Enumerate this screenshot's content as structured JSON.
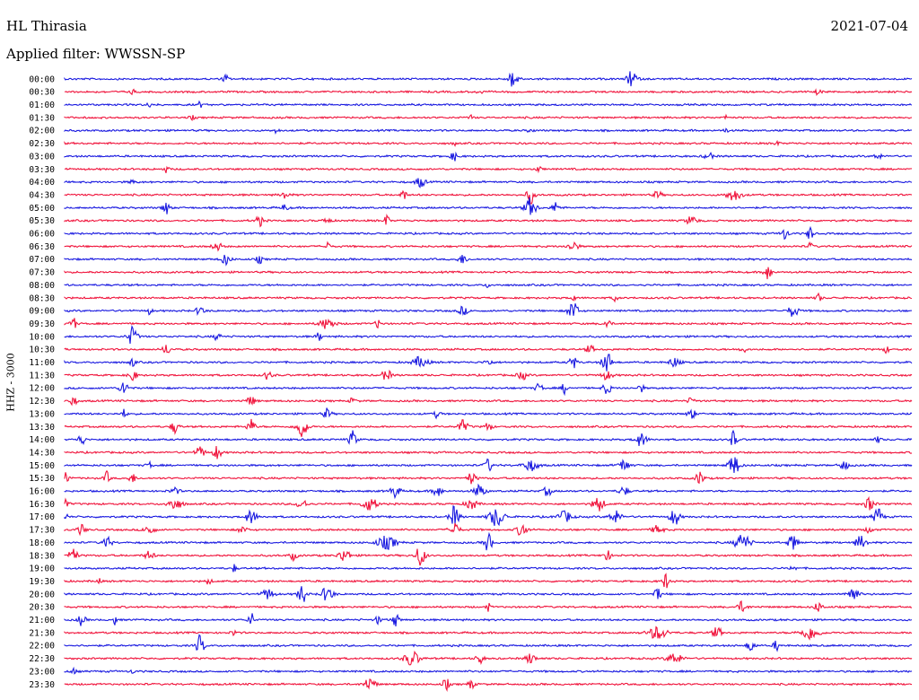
{
  "header": {
    "station": "HL Thirasia",
    "date": "2021-07-04",
    "filter_label": "Applied filter: WWSSN-SP"
  },
  "chart_data": {
    "type": "seismogram",
    "title": "HL Thirasia",
    "date": "2021-07-04",
    "filter": "WWSSN-SP",
    "ylabel": "HHZ - 3000",
    "row_interval_minutes": 30,
    "grid": false,
    "colors": [
      "#1a1ae0",
      "#f0143c"
    ],
    "traces": [
      {
        "time": "00:00",
        "color": "blue",
        "bursts": [
          [
            0.19,
            0.4,
            3
          ],
          [
            0.53,
            0.9,
            5
          ],
          [
            0.67,
            0.9,
            5
          ]
        ]
      },
      {
        "time": "00:30",
        "color": "red",
        "bursts": [
          [
            0.08,
            0.3,
            2
          ],
          [
            0.49,
            0.3,
            3
          ],
          [
            0.89,
            0.3,
            3
          ]
        ]
      },
      {
        "time": "01:00",
        "color": "blue",
        "bursts": [
          [
            0.1,
            0.3,
            2
          ],
          [
            0.16,
            0.3,
            2
          ]
        ]
      },
      {
        "time": "01:30",
        "color": "red",
        "bursts": [
          [
            0.15,
            0.2,
            3
          ],
          [
            0.48,
            0.25,
            2
          ],
          [
            0.78,
            0.2,
            2
          ]
        ]
      },
      {
        "time": "02:00",
        "color": "blue",
        "bursts": [
          [
            0.25,
            0.2,
            3
          ],
          [
            0.55,
            0.2,
            3
          ],
          [
            0.78,
            0.2,
            3
          ]
        ]
      },
      {
        "time": "02:30",
        "color": "red",
        "bursts": [
          [
            0.46,
            0.2,
            2
          ],
          [
            0.84,
            0.2,
            3
          ]
        ]
      },
      {
        "time": "03:00",
        "color": "blue",
        "bursts": [
          [
            0.46,
            0.4,
            4
          ],
          [
            0.76,
            0.3,
            5
          ],
          [
            0.96,
            0.3,
            4
          ]
        ]
      },
      {
        "time": "03:30",
        "color": "red",
        "bursts": [
          [
            0.12,
            0.3,
            3
          ],
          [
            0.56,
            0.2,
            4
          ]
        ]
      },
      {
        "time": "04:00",
        "color": "blue",
        "bursts": [
          [
            0.42,
            0.5,
            5
          ],
          [
            0.08,
            0.2,
            3
          ]
        ]
      },
      {
        "time": "04:30",
        "color": "red",
        "bursts": [
          [
            0.26,
            0.4,
            4
          ],
          [
            0.4,
            0.5,
            3
          ],
          [
            0.55,
            0.8,
            4
          ],
          [
            0.7,
            0.4,
            4
          ],
          [
            0.79,
            0.5,
            8
          ]
        ]
      },
      {
        "time": "05:00",
        "color": "blue",
        "bursts": [
          [
            0.12,
            0.6,
            4
          ],
          [
            0.26,
            0.4,
            3
          ],
          [
            0.55,
            0.9,
            6
          ],
          [
            0.58,
            0.5,
            4
          ]
        ]
      },
      {
        "time": "05:30",
        "color": "red",
        "bursts": [
          [
            0.23,
            0.5,
            4
          ],
          [
            0.31,
            0.3,
            4
          ],
          [
            0.38,
            0.5,
            3
          ],
          [
            0.74,
            0.4,
            6
          ]
        ]
      },
      {
        "time": "06:00",
        "color": "blue",
        "bursts": [
          [
            0.85,
            0.5,
            4
          ],
          [
            0.88,
            0.7,
            3
          ]
        ]
      },
      {
        "time": "06:30",
        "color": "red",
        "bursts": [
          [
            0.18,
            0.4,
            5
          ],
          [
            0.31,
            0.4,
            3
          ],
          [
            0.6,
            0.5,
            5
          ],
          [
            0.88,
            0.3,
            3
          ]
        ]
      },
      {
        "time": "07:00",
        "color": "blue",
        "bursts": [
          [
            0.19,
            0.5,
            5
          ],
          [
            0.23,
            0.4,
            3
          ],
          [
            0.47,
            0.4,
            5
          ]
        ]
      },
      {
        "time": "07:30",
        "color": "red",
        "bursts": [
          [
            0.83,
            0.7,
            4
          ]
        ]
      },
      {
        "time": "08:00",
        "color": "blue",
        "bursts": [
          [
            0.5,
            0.2,
            3
          ]
        ]
      },
      {
        "time": "08:30",
        "color": "red",
        "bursts": [
          [
            0.6,
            0.6,
            2
          ],
          [
            0.65,
            0.5,
            2
          ],
          [
            0.89,
            0.4,
            3
          ]
        ]
      },
      {
        "time": "09:00",
        "color": "blue",
        "bursts": [
          [
            0.1,
            0.3,
            3
          ],
          [
            0.16,
            0.5,
            4
          ],
          [
            0.47,
            0.4,
            5
          ],
          [
            0.6,
            1.0,
            5
          ],
          [
            0.86,
            0.6,
            5
          ]
        ]
      },
      {
        "time": "09:30",
        "color": "red",
        "bursts": [
          [
            0.01,
            0.7,
            3
          ],
          [
            0.31,
            0.5,
            8
          ],
          [
            0.37,
            0.4,
            3
          ],
          [
            0.64,
            0.4,
            4
          ]
        ]
      },
      {
        "time": "10:00",
        "color": "blue",
        "bursts": [
          [
            0.08,
            0.9,
            5
          ],
          [
            0.18,
            0.3,
            4
          ],
          [
            0.3,
            0.4,
            3
          ]
        ]
      },
      {
        "time": "10:30",
        "color": "red",
        "bursts": [
          [
            0.12,
            0.5,
            4
          ],
          [
            0.62,
            0.4,
            4
          ],
          [
            0.8,
            0.5,
            3
          ],
          [
            0.97,
            0.3,
            3
          ]
        ]
      },
      {
        "time": "11:00",
        "color": "blue",
        "bursts": [
          [
            0.08,
            0.4,
            3
          ],
          [
            0.42,
            0.5,
            8
          ],
          [
            0.5,
            0.3,
            4
          ],
          [
            0.6,
            0.6,
            4
          ],
          [
            0.64,
            1.0,
            5
          ],
          [
            0.72,
            0.4,
            6
          ]
        ]
      },
      {
        "time": "11:30",
        "color": "red",
        "bursts": [
          [
            0.08,
            0.6,
            4
          ],
          [
            0.24,
            0.4,
            4
          ],
          [
            0.38,
            0.5,
            5
          ],
          [
            0.54,
            0.4,
            5
          ],
          [
            0.64,
            0.4,
            6
          ]
        ]
      },
      {
        "time": "12:00",
        "color": "blue",
        "bursts": [
          [
            0.07,
            0.8,
            4
          ],
          [
            0.56,
            0.4,
            4
          ],
          [
            0.59,
            0.5,
            3
          ],
          [
            0.64,
            0.6,
            4
          ],
          [
            0.68,
            0.4,
            3
          ]
        ]
      },
      {
        "time": "12:30",
        "color": "red",
        "bursts": [
          [
            0.01,
            0.4,
            4
          ],
          [
            0.22,
            0.4,
            5
          ],
          [
            0.34,
            0.3,
            3
          ],
          [
            0.74,
            0.3,
            4
          ]
        ]
      },
      {
        "time": "13:00",
        "color": "blue",
        "bursts": [
          [
            0.07,
            0.4,
            3
          ],
          [
            0.31,
            0.5,
            4
          ],
          [
            0.44,
            0.4,
            3
          ],
          [
            0.74,
            0.5,
            4
          ]
        ]
      },
      {
        "time": "13:30",
        "color": "red",
        "bursts": [
          [
            0.13,
            0.6,
            4
          ],
          [
            0.22,
            0.7,
            4
          ],
          [
            0.28,
            1.0,
            6
          ],
          [
            0.47,
            0.6,
            5
          ],
          [
            0.5,
            0.4,
            4
          ]
        ]
      },
      {
        "time": "14:00",
        "color": "blue",
        "bursts": [
          [
            0.02,
            0.7,
            3
          ],
          [
            0.34,
            0.8,
            4
          ],
          [
            0.68,
            0.6,
            6
          ],
          [
            0.79,
            1.0,
            3
          ],
          [
            0.96,
            0.3,
            3
          ]
        ]
      },
      {
        "time": "14:30",
        "color": "red",
        "bursts": [
          [
            0.16,
            0.5,
            5
          ],
          [
            0.18,
            0.7,
            4
          ]
        ]
      },
      {
        "time": "15:00",
        "color": "blue",
        "bursts": [
          [
            0.1,
            0.3,
            3
          ],
          [
            0.5,
            0.6,
            4
          ],
          [
            0.55,
            0.5,
            8
          ],
          [
            0.66,
            0.5,
            6
          ],
          [
            0.79,
            0.9,
            6
          ],
          [
            0.92,
            0.4,
            5
          ]
        ]
      },
      {
        "time": "15:30",
        "color": "red",
        "bursts": [
          [
            0.0,
            0.7,
            4
          ],
          [
            0.05,
            0.6,
            3
          ],
          [
            0.08,
            0.4,
            4
          ],
          [
            0.48,
            0.5,
            5
          ],
          [
            0.75,
            0.7,
            4
          ]
        ]
      },
      {
        "time": "16:00",
        "color": "blue",
        "bursts": [
          [
            0.13,
            0.3,
            5
          ],
          [
            0.39,
            0.6,
            5
          ],
          [
            0.44,
            0.5,
            5
          ],
          [
            0.49,
            0.6,
            6
          ],
          [
            0.57,
            0.5,
            4
          ],
          [
            0.66,
            0.4,
            5
          ]
        ]
      },
      {
        "time": "16:30",
        "color": "red",
        "bursts": [
          [
            0.0,
            0.5,
            4
          ],
          [
            0.13,
            0.5,
            8
          ],
          [
            0.28,
            0.4,
            6
          ],
          [
            0.36,
            0.6,
            8
          ],
          [
            0.48,
            0.5,
            6
          ],
          [
            0.63,
            0.7,
            6
          ],
          [
            0.95,
            0.6,
            5
          ]
        ]
      },
      {
        "time": "17:00",
        "color": "blue",
        "bursts": [
          [
            0.0,
            0.5,
            3
          ],
          [
            0.22,
            0.6,
            6
          ],
          [
            0.46,
            1.0,
            5
          ],
          [
            0.51,
            0.9,
            8
          ],
          [
            0.59,
            0.5,
            8
          ],
          [
            0.65,
            0.6,
            6
          ],
          [
            0.72,
            0.8,
            5
          ],
          [
            0.96,
            0.8,
            5
          ]
        ]
      },
      {
        "time": "17:30",
        "color": "red",
        "bursts": [
          [
            0.02,
            0.5,
            4
          ],
          [
            0.1,
            0.4,
            6
          ],
          [
            0.21,
            0.3,
            5
          ],
          [
            0.46,
            0.7,
            5
          ],
          [
            0.54,
            0.7,
            5
          ],
          [
            0.7,
            0.4,
            6
          ],
          [
            0.95,
            0.3,
            4
          ]
        ]
      },
      {
        "time": "18:00",
        "color": "blue",
        "bursts": [
          [
            0.05,
            0.5,
            5
          ],
          [
            0.38,
            0.6,
            10
          ],
          [
            0.5,
            0.9,
            4
          ],
          [
            0.8,
            0.8,
            8
          ],
          [
            0.86,
            0.8,
            5
          ],
          [
            0.94,
            0.6,
            6
          ]
        ]
      },
      {
        "time": "18:30",
        "color": "red",
        "bursts": [
          [
            0.01,
            0.9,
            4
          ],
          [
            0.1,
            0.4,
            5
          ],
          [
            0.27,
            0.4,
            4
          ],
          [
            0.33,
            0.6,
            6
          ],
          [
            0.42,
            1.0,
            5
          ],
          [
            0.64,
            0.5,
            4
          ]
        ]
      },
      {
        "time": "19:00",
        "color": "blue",
        "bursts": [
          [
            0.2,
            0.4,
            2
          ],
          [
            0.86,
            0.3,
            3
          ]
        ]
      },
      {
        "time": "19:30",
        "color": "red",
        "bursts": [
          [
            0.04,
            0.4,
            2
          ],
          [
            0.17,
            0.3,
            3
          ],
          [
            0.71,
            0.7,
            4
          ]
        ]
      },
      {
        "time": "20:00",
        "color": "blue",
        "bursts": [
          [
            0.24,
            0.5,
            6
          ],
          [
            0.28,
            1.0,
            4
          ],
          [
            0.31,
            0.7,
            6
          ],
          [
            0.7,
            0.7,
            3
          ],
          [
            0.93,
            0.7,
            6
          ]
        ]
      },
      {
        "time": "20:30",
        "color": "red",
        "bursts": [
          [
            0.5,
            0.4,
            2
          ],
          [
            0.8,
            0.5,
            5
          ],
          [
            0.89,
            0.4,
            5
          ]
        ]
      },
      {
        "time": "21:00",
        "color": "blue",
        "bursts": [
          [
            0.02,
            0.5,
            4
          ],
          [
            0.06,
            0.5,
            2
          ],
          [
            0.22,
            0.7,
            3
          ],
          [
            0.37,
            0.4,
            3
          ],
          [
            0.39,
            0.6,
            4
          ]
        ]
      },
      {
        "time": "21:30",
        "color": "red",
        "bursts": [
          [
            0.2,
            0.3,
            3
          ],
          [
            0.7,
            0.6,
            10
          ],
          [
            0.77,
            0.5,
            5
          ],
          [
            0.88,
            0.6,
            10
          ]
        ]
      },
      {
        "time": "22:00",
        "color": "blue",
        "bursts": [
          [
            0.16,
            1.0,
            4
          ],
          [
            0.81,
            0.6,
            4
          ],
          [
            0.84,
            0.5,
            3
          ]
        ]
      },
      {
        "time": "22:30",
        "color": "red",
        "bursts": [
          [
            0.41,
            0.7,
            8
          ],
          [
            0.49,
            0.5,
            4
          ],
          [
            0.55,
            0.5,
            5
          ],
          [
            0.72,
            0.5,
            8
          ]
        ]
      },
      {
        "time": "23:00",
        "color": "blue",
        "bursts": [
          [
            0.01,
            0.3,
            3
          ],
          [
            0.08,
            0.2,
            2
          ]
        ]
      },
      {
        "time": "23:30",
        "color": "red",
        "bursts": [
          [
            0.36,
            0.6,
            6
          ],
          [
            0.45,
            0.7,
            3
          ],
          [
            0.48,
            0.5,
            3
          ]
        ]
      }
    ]
  }
}
